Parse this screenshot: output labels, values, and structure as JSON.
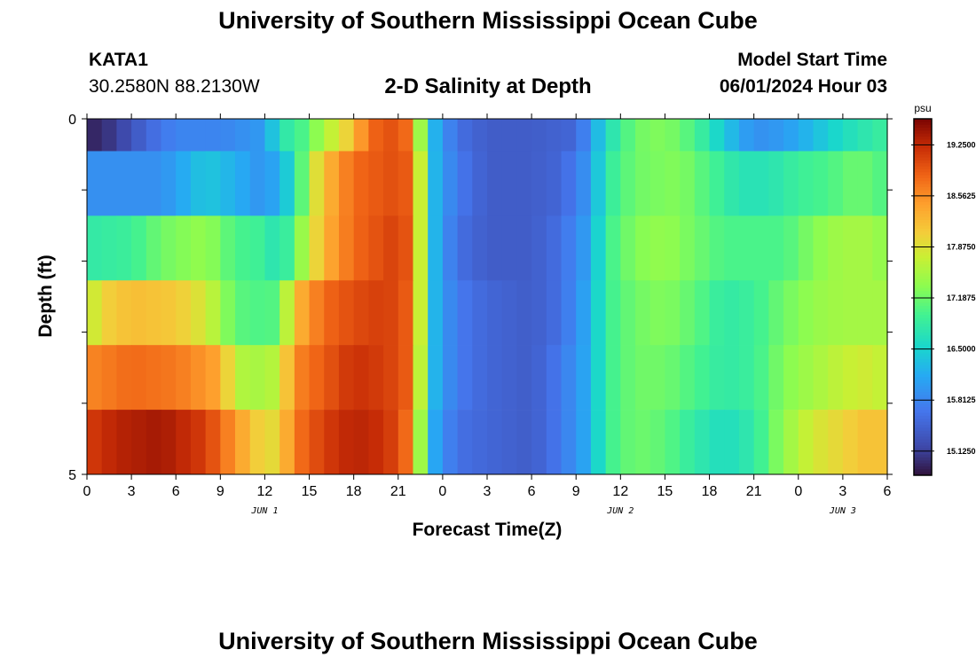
{
  "header": {
    "title": "University of Southern Mississippi Ocean Cube",
    "station": "KATA1",
    "coords": "30.2580N  88.2130W",
    "subtitle": "2-D Salinity at Depth",
    "model_start_label": "Model Start Time",
    "model_start_value": "06/01/2024 Hour 03"
  },
  "footer": {
    "title": "University of Southern Mississippi Ocean Cube"
  },
  "chart_data": {
    "type": "heatmap",
    "title": "2-D Salinity at Depth",
    "xlabel": "Forecast Time(Z)",
    "ylabel": "Depth (ft)",
    "x_tick_labels": [
      "0",
      "3",
      "6",
      "9",
      "12",
      "15",
      "18",
      "21",
      "0",
      "3",
      "6",
      "9",
      "12",
      "15",
      "18",
      "21",
      "0",
      "3",
      "6"
    ],
    "x_date_labels": [
      {
        "label": "JUN 1",
        "tick_index": 4
      },
      {
        "label": "JUN 2",
        "tick_index": 12
      },
      {
        "label": "JUN 3",
        "tick_index": 17
      }
    ],
    "y_tick_labels": [
      "0",
      "5"
    ],
    "ylim": [
      0,
      5
    ],
    "colorbar": {
      "unit": "psu",
      "min": 14.8,
      "max": 19.6,
      "tick_labels": [
        "19.2500",
        "18.5625",
        "17.8750",
        "17.1875",
        "16.5000",
        "15.8125",
        "15.1250"
      ],
      "tick_values": [
        19.25,
        18.5625,
        17.875,
        17.1875,
        16.5,
        15.8125,
        15.125
      ]
    },
    "hours_per_column": 1,
    "total_hours": 54,
    "depth_layers": [
      {
        "knots": [
          [
            0,
            14.9
          ],
          [
            2,
            15.1
          ],
          [
            4,
            15.5
          ],
          [
            6,
            15.8
          ],
          [
            9,
            15.8
          ],
          [
            12,
            16.0
          ],
          [
            13,
            16.7
          ],
          [
            15,
            17.1
          ],
          [
            16,
            17.6
          ],
          [
            17,
            17.8
          ],
          [
            18,
            18.2
          ],
          [
            19,
            18.8
          ],
          [
            21,
            19.0
          ],
          [
            22,
            18.6
          ],
          [
            22.7,
            17.0
          ],
          [
            23.6,
            16.1
          ],
          [
            25,
            15.6
          ],
          [
            27,
            15.4
          ],
          [
            30,
            15.4
          ],
          [
            33,
            15.5
          ],
          [
            34,
            16.0
          ],
          [
            35,
            16.6
          ],
          [
            37,
            17.2
          ],
          [
            39,
            17.3
          ],
          [
            41,
            17.0
          ],
          [
            43,
            16.4
          ],
          [
            45,
            15.9
          ],
          [
            47,
            16.0
          ],
          [
            49,
            16.3
          ],
          [
            51,
            16.6
          ],
          [
            54,
            16.9
          ]
        ]
      },
      {
        "knots": [
          [
            0,
            15.9
          ],
          [
            5,
            15.9
          ],
          [
            8,
            16.4
          ],
          [
            10,
            16.2
          ],
          [
            12,
            15.9
          ],
          [
            14,
            16.6
          ],
          [
            15,
            17.6
          ],
          [
            16,
            18.2
          ],
          [
            18,
            18.8
          ],
          [
            21,
            19.0
          ],
          [
            22,
            18.8
          ],
          [
            22.7,
            17.3
          ],
          [
            23.6,
            16.1
          ],
          [
            25,
            15.7
          ],
          [
            27,
            15.4
          ],
          [
            30,
            15.4
          ],
          [
            32,
            15.5
          ],
          [
            34,
            16.0
          ],
          [
            35,
            16.8
          ],
          [
            37,
            17.2
          ],
          [
            40,
            17.3
          ],
          [
            42,
            17.0
          ],
          [
            44,
            16.7
          ],
          [
            46,
            16.7
          ],
          [
            48,
            16.9
          ],
          [
            50,
            17.0
          ],
          [
            52,
            17.2
          ],
          [
            54,
            17.0
          ]
        ]
      },
      {
        "knots": [
          [
            0,
            16.8
          ],
          [
            3,
            16.9
          ],
          [
            5,
            17.2
          ],
          [
            8,
            17.4
          ],
          [
            10,
            17.0
          ],
          [
            12,
            16.9
          ],
          [
            13,
            16.6
          ],
          [
            15,
            17.7
          ],
          [
            16,
            18.3
          ],
          [
            18,
            18.8
          ],
          [
            21,
            19.1
          ],
          [
            22,
            18.8
          ],
          [
            22.7,
            17.3
          ],
          [
            23.6,
            16.1
          ],
          [
            25,
            15.6
          ],
          [
            27,
            15.4
          ],
          [
            30,
            15.4
          ],
          [
            32,
            15.6
          ],
          [
            34,
            16.1
          ],
          [
            35,
            16.9
          ],
          [
            37,
            17.3
          ],
          [
            39,
            17.4
          ],
          [
            41,
            17.2
          ],
          [
            43,
            17.0
          ],
          [
            45,
            17.0
          ],
          [
            47,
            17.0
          ],
          [
            49,
            17.3
          ],
          [
            51,
            17.5
          ],
          [
            53,
            17.5
          ],
          [
            54,
            17.3
          ]
        ]
      },
      {
        "knots": [
          [
            0,
            17.6
          ],
          [
            1,
            18.0
          ],
          [
            3,
            18.2
          ],
          [
            6,
            18.1
          ],
          [
            8,
            17.8
          ],
          [
            10,
            17.1
          ],
          [
            12,
            17.0
          ],
          [
            13,
            17.1
          ],
          [
            14,
            18.2
          ],
          [
            16,
            18.8
          ],
          [
            18,
            19.0
          ],
          [
            20,
            19.1
          ],
          [
            21,
            19.0
          ],
          [
            22,
            18.8
          ],
          [
            22.7,
            17.3
          ],
          [
            23.6,
            16.1
          ],
          [
            25,
            15.7
          ],
          [
            27,
            15.5
          ],
          [
            30,
            15.4
          ],
          [
            32,
            15.6
          ],
          [
            34,
            16.2
          ],
          [
            35,
            16.9
          ],
          [
            37,
            17.2
          ],
          [
            39,
            17.3
          ],
          [
            41,
            17.1
          ],
          [
            43,
            16.8
          ],
          [
            45,
            16.9
          ],
          [
            47,
            17.2
          ],
          [
            49,
            17.4
          ],
          [
            51,
            17.5
          ],
          [
            54,
            17.5
          ]
        ]
      },
      {
        "knots": [
          [
            0,
            18.6
          ],
          [
            3,
            18.8
          ],
          [
            6,
            18.7
          ],
          [
            9,
            18.4
          ],
          [
            10,
            17.6
          ],
          [
            12,
            17.5
          ],
          [
            13,
            17.7
          ],
          [
            14,
            18.6
          ],
          [
            16,
            18.9
          ],
          [
            18,
            19.2
          ],
          [
            20,
            19.1
          ],
          [
            21,
            19.0
          ],
          [
            22,
            18.8
          ],
          [
            22.7,
            17.2
          ],
          [
            23.6,
            16.1
          ],
          [
            25,
            15.7
          ],
          [
            27,
            15.5
          ],
          [
            30,
            15.4
          ],
          [
            32,
            15.7
          ],
          [
            34,
            16.2
          ],
          [
            35,
            16.9
          ],
          [
            37,
            17.2
          ],
          [
            39,
            17.2
          ],
          [
            41,
            17.0
          ],
          [
            43,
            16.8
          ],
          [
            45,
            16.9
          ],
          [
            47,
            17.3
          ],
          [
            49,
            17.5
          ],
          [
            51,
            17.7
          ],
          [
            53,
            17.8
          ],
          [
            54,
            17.6
          ]
        ]
      },
      {
        "knots": [
          [
            0,
            19.1
          ],
          [
            2,
            19.3
          ],
          [
            5,
            19.4
          ],
          [
            8,
            19.1
          ],
          [
            10,
            18.5
          ],
          [
            12,
            17.9
          ],
          [
            13,
            18.0
          ],
          [
            14,
            18.7
          ],
          [
            16,
            19.1
          ],
          [
            18,
            19.3
          ],
          [
            20,
            19.2
          ],
          [
            21,
            19.0
          ],
          [
            22,
            18.6
          ],
          [
            22.7,
            17.0
          ],
          [
            23.6,
            16.0
          ],
          [
            25,
            15.6
          ],
          [
            27,
            15.5
          ],
          [
            30,
            15.4
          ],
          [
            32,
            15.7
          ],
          [
            34,
            16.2
          ],
          [
            35,
            16.9
          ],
          [
            37,
            17.2
          ],
          [
            39,
            17.1
          ],
          [
            41,
            16.8
          ],
          [
            43,
            16.6
          ],
          [
            45,
            16.8
          ],
          [
            47,
            17.4
          ],
          [
            49,
            17.8
          ],
          [
            51,
            18.0
          ],
          [
            53,
            18.2
          ],
          [
            54,
            18.1
          ]
        ]
      }
    ]
  }
}
